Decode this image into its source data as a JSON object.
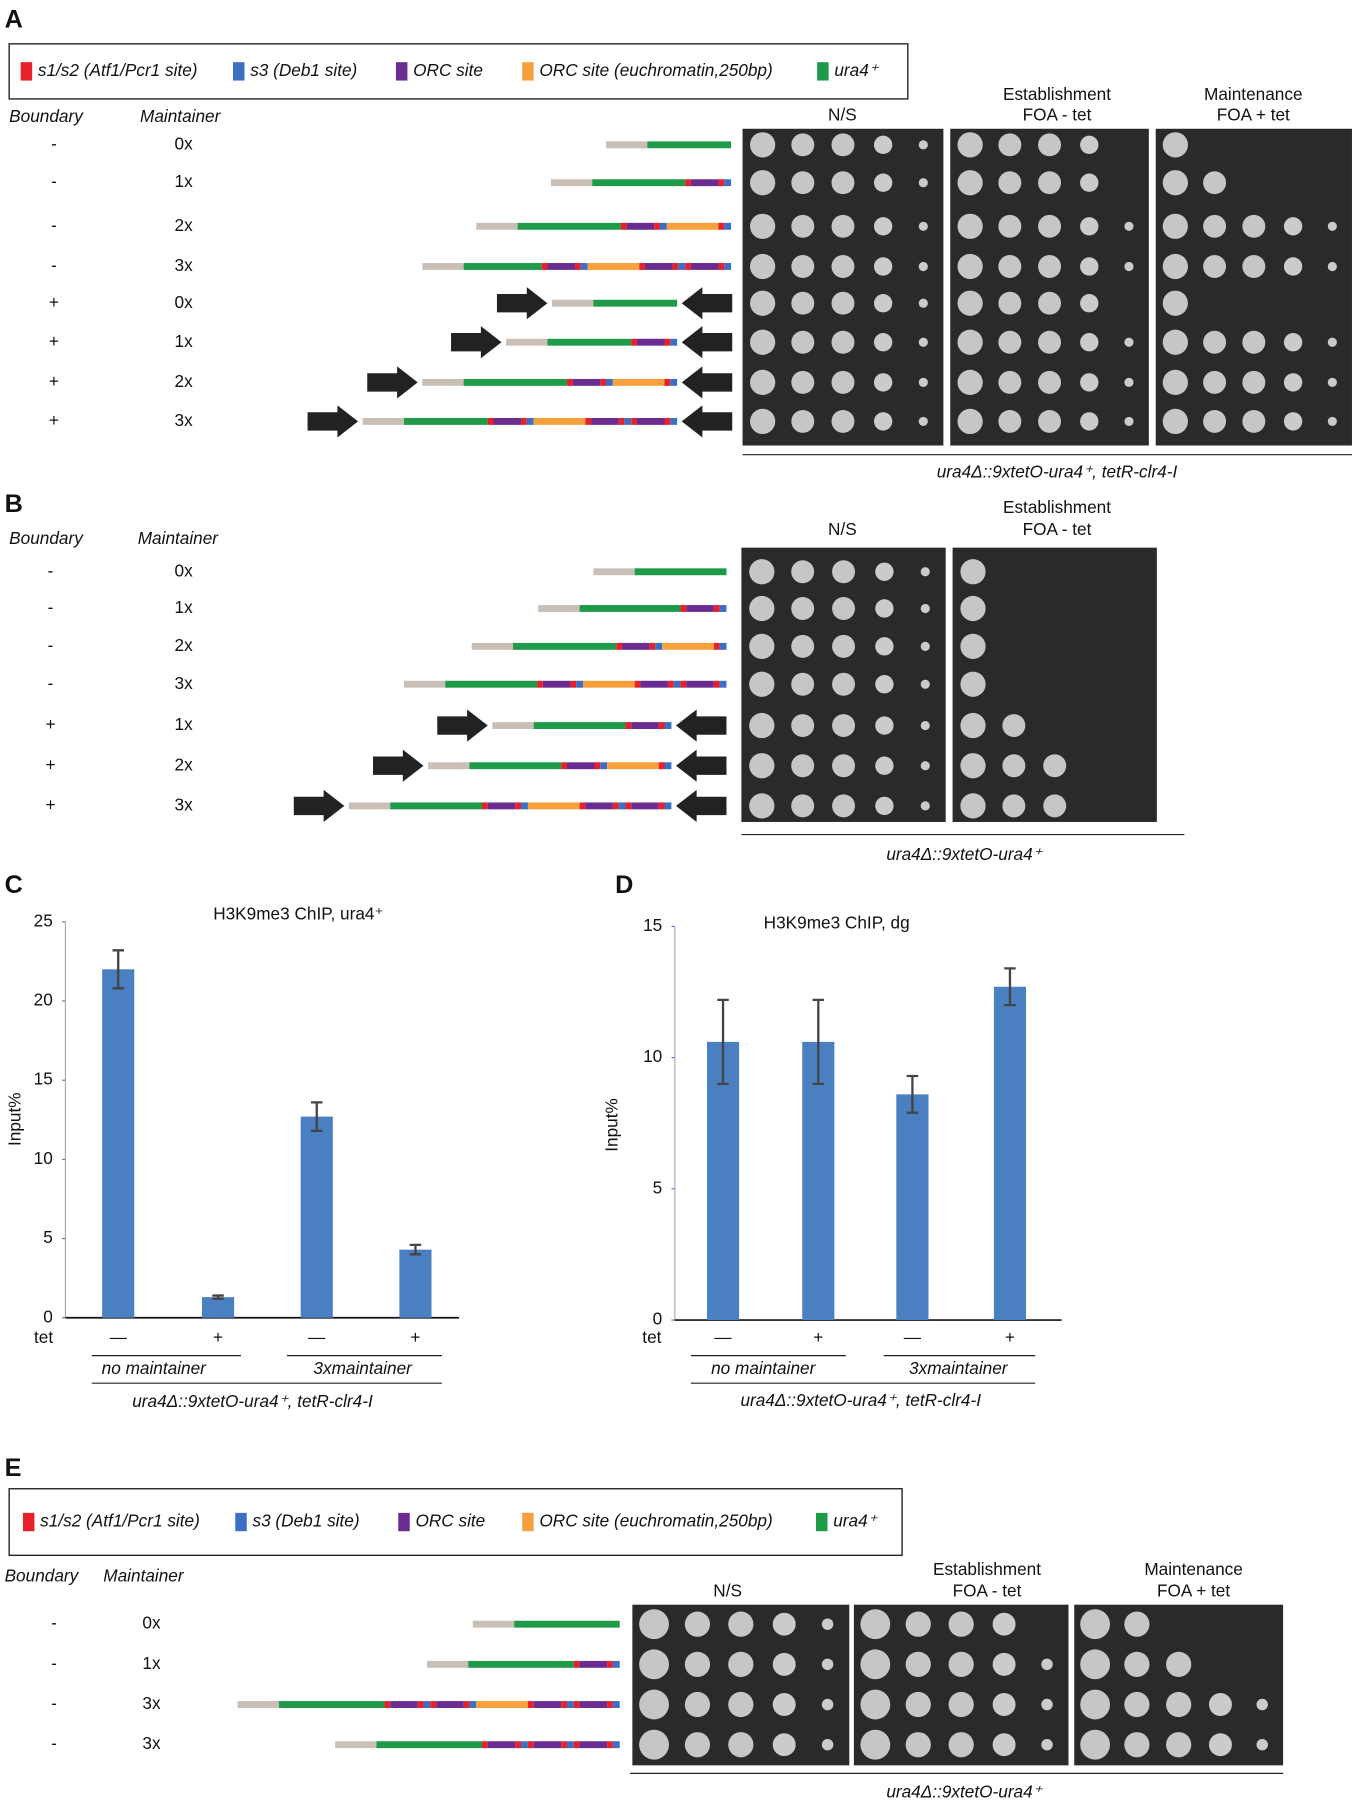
{
  "panel_a": {
    "label": "A",
    "legend": [
      {
        "label": "s1/s2 (Atf1/Pcr1 site)",
        "color": "#e8202a"
      },
      {
        "label": "s3 (Deb1 site)",
        "color": "#3b6fc4"
      },
      {
        "label": "ORC site",
        "color": "#6a2c91"
      },
      {
        "label": "ORC site (euchromatin,250bp)",
        "color": "#f7a03c"
      },
      {
        "label": "ura4⁺",
        "color": "#1f9a48"
      }
    ],
    "header_boundary": "Boundary",
    "header_maintainer": "Maintainer",
    "plates": [
      [
        "N/S"
      ],
      [
        "Establishment",
        "FOA - tet"
      ],
      [
        "Maintenance",
        "FOA + tet"
      ]
    ],
    "rows": [
      [
        "-",
        "0x"
      ],
      [
        "-",
        "1x"
      ],
      [
        "-",
        "2x"
      ],
      [
        "-",
        "3x"
      ],
      [
        "+",
        "0x"
      ],
      [
        "+",
        "1x"
      ],
      [
        "+",
        "2x"
      ],
      [
        "+",
        "3x"
      ]
    ],
    "genotype": "ura4Δ::9xtetO-ura4⁺, tetR-clr4-I"
  },
  "panel_b": {
    "label": "B",
    "header_boundary": "Boundary",
    "header_maintainer": "Maintainer",
    "plates": [
      [
        "N/S"
      ],
      [
        "Establishment",
        "FOA - tet"
      ]
    ],
    "rows": [
      [
        "-",
        "0x"
      ],
      [
        "-",
        "1x"
      ],
      [
        "-",
        "2x"
      ],
      [
        "-",
        "3x"
      ],
      [
        "+",
        "1x"
      ],
      [
        "+",
        "2x"
      ],
      [
        "+",
        "3x"
      ]
    ],
    "genotype": "ura4Δ::9xtetO-ura4⁺"
  },
  "chart_data": [
    {
      "type": "bar",
      "panel": "C",
      "title": "H3K9me3 ChIP, ura4⁺",
      "y_label": "Input%",
      "x_label": "tet",
      "categories": [
        "—",
        "+",
        "—",
        "+"
      ],
      "groups": [
        "no maintainer",
        "3xmaintainer"
      ],
      "genotype": "ura4Δ::9xtetO-ura4⁺, tetR-clr4-I",
      "ylim": [
        0,
        25
      ],
      "yticks": [
        0,
        5,
        10,
        15,
        20,
        25
      ],
      "series": [
        {
          "color": "#4a7fc1",
          "values": [
            22,
            1.3,
            12.7,
            4.3
          ],
          "errors": [
            1.2,
            0.1,
            0.9,
            0.3
          ]
        }
      ]
    },
    {
      "type": "bar",
      "panel": "D",
      "title": "H3K9me3 ChIP, dg",
      "y_label": "Input%",
      "x_label": "tet",
      "categories": [
        "—",
        "+",
        "—",
        "+"
      ],
      "groups": [
        "no maintainer",
        "3xmaintainer"
      ],
      "genotype": "ura4Δ::9xtetO-ura4⁺, tetR-clr4-I",
      "ylim": [
        0,
        15
      ],
      "yticks": [
        0,
        5,
        10,
        15
      ],
      "series": [
        {
          "color": "#4a7fc1",
          "values": [
            10.6,
            10.6,
            8.6,
            12.7
          ],
          "errors": [
            1.6,
            1.6,
            0.7,
            0.7
          ]
        }
      ]
    }
  ],
  "panel_e": {
    "label": "E",
    "legend": [
      {
        "label": "s1/s2 (Atf1/Pcr1 site)",
        "color": "#e8202a"
      },
      {
        "label": "s3 (Deb1 site)",
        "color": "#3b6fc4"
      },
      {
        "label": "ORC site",
        "color": "#6a2c91"
      },
      {
        "label": "ORC site (euchromatin,250bp)",
        "color": "#f7a03c"
      },
      {
        "label": "ura4⁺",
        "color": "#1f9a48"
      }
    ],
    "header_boundary": "Boundary",
    "header_maintainer": "Maintainer",
    "plates": [
      [
        "N/S"
      ],
      [
        "Establishment",
        "FOA - tet"
      ],
      [
        "Maintenance",
        "FOA + tet"
      ]
    ],
    "rows": [
      [
        "-",
        "0x"
      ],
      [
        "-",
        "1x"
      ],
      [
        "-",
        "3x"
      ],
      [
        "-",
        "3x"
      ]
    ],
    "genotype": "ura4Δ::9xtetO-ura4⁺"
  }
}
